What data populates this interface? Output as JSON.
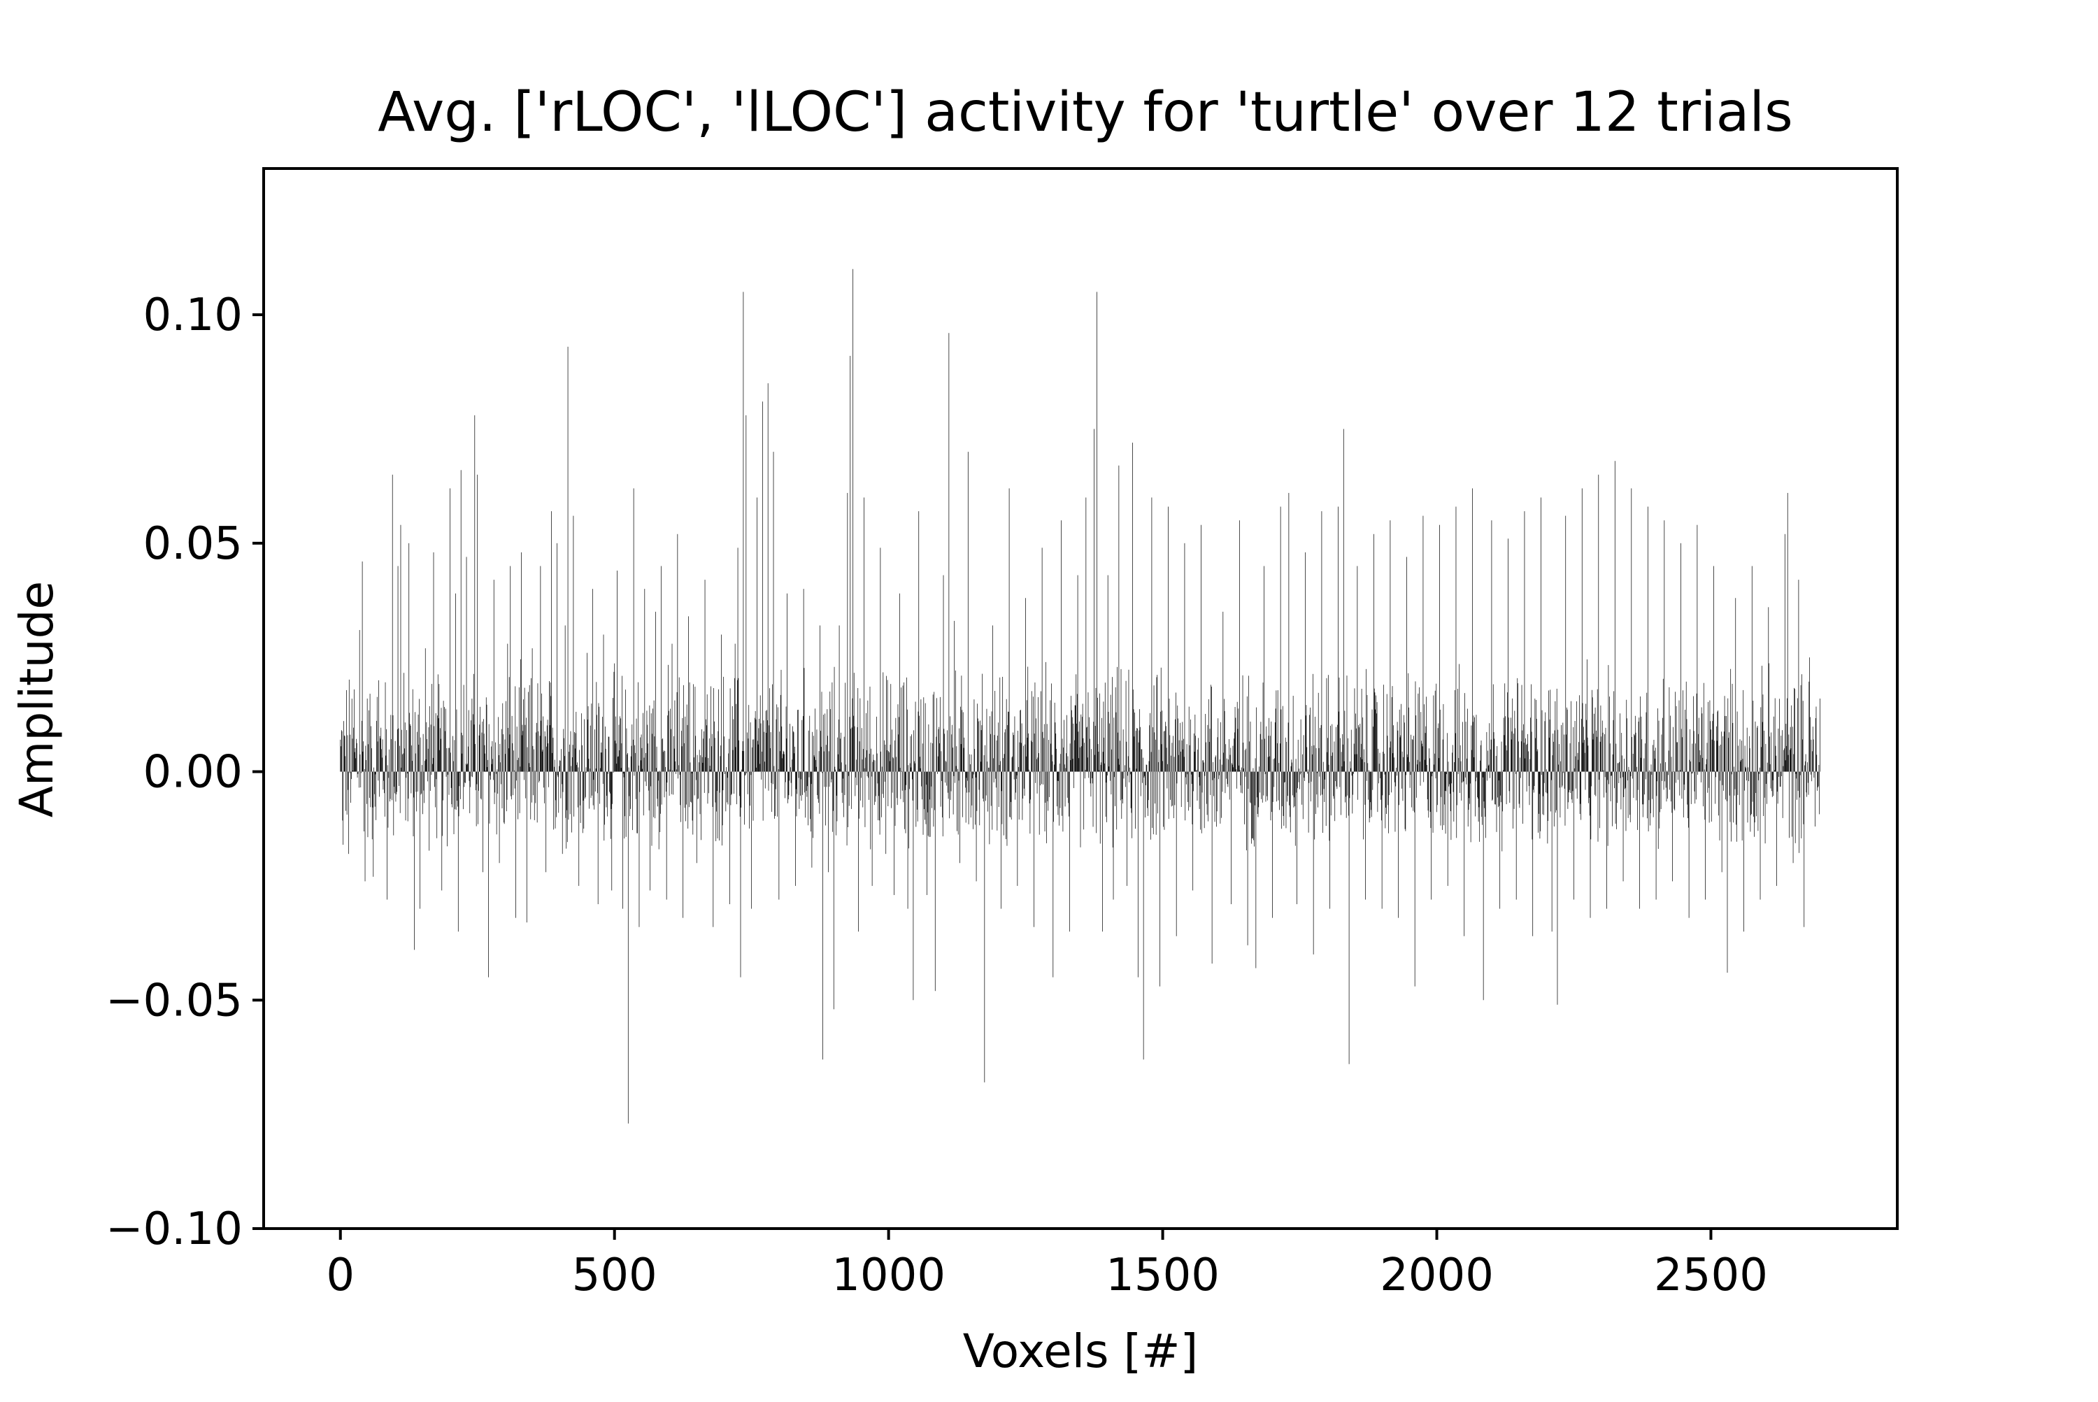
{
  "chart_data": {
    "type": "bar",
    "title": "Avg. ['rLOC', 'lLOC'] activity for 'turtle' over 12 trials",
    "xlabel": "Voxels [#]",
    "ylabel": "Amplitude",
    "xlim": [
      -140,
      2840
    ],
    "ylim": [
      -0.1,
      0.132
    ],
    "x_ticks": [
      0,
      500,
      1000,
      1500,
      2000,
      2500
    ],
    "x_tick_labels": [
      "0",
      "500",
      "1000",
      "1500",
      "2000",
      "2500"
    ],
    "y_ticks": [
      -0.1,
      -0.05,
      0.0,
      0.05,
      0.1
    ],
    "y_tick_labels": [
      "−0.10",
      "−0.05",
      "0.00",
      "0.05",
      "0.10"
    ],
    "grid": false,
    "legend": "none",
    "bar_color": "#000000",
    "n_voxels": 2700,
    "peak_values": [
      [
        0,
        0.007
      ],
      [
        5,
        -0.016
      ],
      [
        15,
        -0.018
      ],
      [
        25,
        0.018
      ],
      [
        35,
        0.031
      ],
      [
        40,
        0.046
      ],
      [
        45,
        -0.024
      ],
      [
        60,
        -0.023
      ],
      [
        70,
        0.02
      ],
      [
        85,
        -0.028
      ],
      [
        95,
        0.065
      ],
      [
        105,
        0.045
      ],
      [
        110,
        0.054
      ],
      [
        125,
        0.05
      ],
      [
        135,
        -0.039
      ],
      [
        145,
        -0.03
      ],
      [
        155,
        0.027
      ],
      [
        170,
        0.048
      ],
      [
        185,
        -0.026
      ],
      [
        200,
        0.062
      ],
      [
        210,
        0.039
      ],
      [
        215,
        -0.035
      ],
      [
        220,
        0.066
      ],
      [
        230,
        0.047
      ],
      [
        245,
        0.078
      ],
      [
        250,
        0.065
      ],
      [
        260,
        -0.022
      ],
      [
        270,
        -0.045
      ],
      [
        280,
        0.042
      ],
      [
        290,
        -0.02
      ],
      [
        305,
        0.028
      ],
      [
        310,
        0.045
      ],
      [
        320,
        -0.032
      ],
      [
        330,
        0.048
      ],
      [
        340,
        -0.033
      ],
      [
        350,
        0.027
      ],
      [
        365,
        0.045
      ],
      [
        375,
        -0.022
      ],
      [
        385,
        0.057
      ],
      [
        395,
        0.05
      ],
      [
        405,
        -0.018
      ],
      [
        410,
        0.032
      ],
      [
        415,
        0.093
      ],
      [
        425,
        0.056
      ],
      [
        435,
        -0.025
      ],
      [
        450,
        0.026
      ],
      [
        460,
        0.04
      ],
      [
        470,
        -0.029
      ],
      [
        480,
        0.03
      ],
      [
        495,
        -0.026
      ],
      [
        505,
        0.044
      ],
      [
        515,
        -0.03
      ],
      [
        525,
        -0.077
      ],
      [
        535,
        0.062
      ],
      [
        545,
        -0.034
      ],
      [
        555,
        0.04
      ],
      [
        565,
        -0.026
      ],
      [
        575,
        0.035
      ],
      [
        585,
        0.045
      ],
      [
        595,
        -0.028
      ],
      [
        605,
        0.028
      ],
      [
        615,
        0.052
      ],
      [
        625,
        -0.032
      ],
      [
        635,
        0.034
      ],
      [
        650,
        -0.02
      ],
      [
        665,
        0.042
      ],
      [
        680,
        -0.034
      ],
      [
        695,
        0.03
      ],
      [
        710,
        -0.029
      ],
      [
        720,
        0.028
      ],
      [
        725,
        0.049
      ],
      [
        730,
        -0.045
      ],
      [
        735,
        0.105
      ],
      [
        740,
        0.078
      ],
      [
        750,
        -0.03
      ],
      [
        760,
        0.06
      ],
      [
        770,
        0.081
      ],
      [
        780,
        0.085
      ],
      [
        790,
        0.07
      ],
      [
        800,
        -0.028
      ],
      [
        815,
        0.039
      ],
      [
        830,
        -0.025
      ],
      [
        845,
        0.04
      ],
      [
        860,
        -0.021
      ],
      [
        875,
        0.032
      ],
      [
        880,
        -0.063
      ],
      [
        890,
        -0.022
      ],
      [
        900,
        -0.052
      ],
      [
        910,
        0.032
      ],
      [
        925,
        0.061
      ],
      [
        930,
        0.091
      ],
      [
        935,
        0.11
      ],
      [
        945,
        -0.035
      ],
      [
        955,
        0.06
      ],
      [
        970,
        -0.025
      ],
      [
        985,
        0.049
      ],
      [
        995,
        -0.018
      ],
      [
        1010,
        -0.027
      ],
      [
        1020,
        0.039
      ],
      [
        1035,
        -0.03
      ],
      [
        1045,
        -0.05
      ],
      [
        1055,
        0.057
      ],
      [
        1070,
        -0.027
      ],
      [
        1085,
        -0.048
      ],
      [
        1100,
        0.043
      ],
      [
        1110,
        0.096
      ],
      [
        1120,
        0.033
      ],
      [
        1130,
        -0.02
      ],
      [
        1145,
        0.07
      ],
      [
        1160,
        -0.024
      ],
      [
        1175,
        -0.068
      ],
      [
        1190,
        0.032
      ],
      [
        1205,
        -0.03
      ],
      [
        1220,
        0.062
      ],
      [
        1235,
        -0.025
      ],
      [
        1250,
        0.038
      ],
      [
        1265,
        -0.034
      ],
      [
        1280,
        0.049
      ],
      [
        1300,
        -0.045
      ],
      [
        1315,
        0.055
      ],
      [
        1330,
        -0.035
      ],
      [
        1345,
        0.043
      ],
      [
        1360,
        0.06
      ],
      [
        1375,
        0.075
      ],
      [
        1380,
        0.105
      ],
      [
        1390,
        -0.035
      ],
      [
        1400,
        0.043
      ],
      [
        1410,
        -0.028
      ],
      [
        1420,
        0.067
      ],
      [
        1435,
        -0.025
      ],
      [
        1445,
        0.072
      ],
      [
        1455,
        -0.045
      ],
      [
        1465,
        -0.063
      ],
      [
        1480,
        0.06
      ],
      [
        1495,
        -0.047
      ],
      [
        1510,
        0.058
      ],
      [
        1525,
        -0.036
      ],
      [
        1540,
        0.05
      ],
      [
        1555,
        -0.026
      ],
      [
        1570,
        0.054
      ],
      [
        1590,
        -0.042
      ],
      [
        1610,
        0.035
      ],
      [
        1625,
        -0.029
      ],
      [
        1640,
        0.055
      ],
      [
        1655,
        -0.038
      ],
      [
        1670,
        -0.043
      ],
      [
        1685,
        0.045
      ],
      [
        1700,
        -0.032
      ],
      [
        1715,
        0.058
      ],
      [
        1730,
        0.061
      ],
      [
        1745,
        -0.029
      ],
      [
        1760,
        0.048
      ],
      [
        1775,
        -0.04
      ],
      [
        1790,
        0.057
      ],
      [
        1805,
        -0.03
      ],
      [
        1820,
        0.058
      ],
      [
        1830,
        0.075
      ],
      [
        1840,
        -0.064
      ],
      [
        1855,
        0.045
      ],
      [
        1870,
        -0.028
      ],
      [
        1885,
        0.052
      ],
      [
        1900,
        -0.03
      ],
      [
        1915,
        0.055
      ],
      [
        1930,
        -0.032
      ],
      [
        1945,
        0.047
      ],
      [
        1960,
        -0.047
      ],
      [
        1975,
        0.056
      ],
      [
        1990,
        -0.028
      ],
      [
        2005,
        0.054
      ],
      [
        2020,
        -0.025
      ],
      [
        2035,
        0.058
      ],
      [
        2050,
        -0.036
      ],
      [
        2065,
        0.062
      ],
      [
        2085,
        -0.05
      ],
      [
        2100,
        0.055
      ],
      [
        2115,
        -0.03
      ],
      [
        2130,
        0.051
      ],
      [
        2145,
        -0.028
      ],
      [
        2160,
        0.057
      ],
      [
        2175,
        -0.036
      ],
      [
        2190,
        0.06
      ],
      [
        2210,
        -0.035
      ],
      [
        2220,
        -0.051
      ],
      [
        2235,
        0.056
      ],
      [
        2250,
        -0.028
      ],
      [
        2265,
        0.062
      ],
      [
        2280,
        -0.032
      ],
      [
        2295,
        0.065
      ],
      [
        2310,
        -0.03
      ],
      [
        2325,
        0.068
      ],
      [
        2340,
        -0.024
      ],
      [
        2355,
        0.062
      ],
      [
        2370,
        -0.03
      ],
      [
        2385,
        0.058
      ],
      [
        2400,
        -0.028
      ],
      [
        2415,
        0.055
      ],
      [
        2430,
        -0.024
      ],
      [
        2445,
        0.05
      ],
      [
        2460,
        -0.032
      ],
      [
        2475,
        0.054
      ],
      [
        2490,
        -0.028
      ],
      [
        2505,
        0.045
      ],
      [
        2520,
        -0.022
      ],
      [
        2530,
        -0.044
      ],
      [
        2545,
        0.038
      ],
      [
        2560,
        -0.035
      ],
      [
        2575,
        0.045
      ],
      [
        2590,
        -0.028
      ],
      [
        2605,
        0.036
      ],
      [
        2620,
        -0.025
      ],
      [
        2635,
        0.052
      ],
      [
        2640,
        0.061
      ],
      [
        2650,
        -0.02
      ],
      [
        2660,
        0.042
      ],
      [
        2670,
        -0.034
      ],
      [
        2680,
        0.025
      ],
      [
        2690,
        -0.012
      ],
      [
        2699,
        0.016
      ]
    ]
  }
}
